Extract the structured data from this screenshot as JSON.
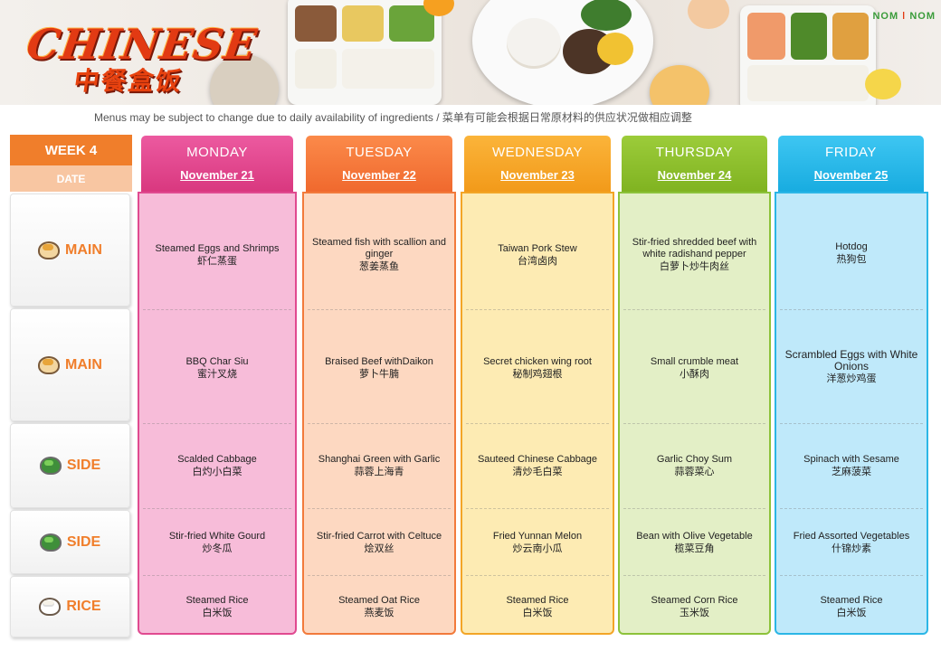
{
  "header": {
    "brand_main": "CHINESE",
    "brand_sub": "中餐盒饭",
    "logo_left": "NOM",
    "logo_right": "NOM",
    "notice": "Menus may be subject to change due to daily availability  of ingredients / 菜单有可能会根据日常原材料的供应状况做相应调整"
  },
  "sidebar": {
    "week": "WEEK 4",
    "date_label": "DATE",
    "rows": [
      {
        "label": "MAIN",
        "icon": "main-dish-icon"
      },
      {
        "label": "MAIN",
        "icon": "main-dish-icon"
      },
      {
        "label": "SIDE",
        "icon": "vegetable-bowl-icon"
      },
      {
        "label": "SIDE",
        "icon": "vegetable-bowl-icon"
      },
      {
        "label": "RICE",
        "icon": "rice-bowl-icon"
      }
    ]
  },
  "days": [
    {
      "name": "MONDAY",
      "date": "November 21",
      "color": "#e04a90",
      "dishes": [
        {
          "en": "Steamed Eggs and Shrimps",
          "zh": "虾仁蒸蛋"
        },
        {
          "en": "BBQ Char Siu",
          "zh": "蜜汁叉烧"
        },
        {
          "en": "Scalded Cabbage",
          "zh": "白灼小白菜"
        },
        {
          "en": "Stir-fried White Gourd",
          "zh": "炒冬瓜"
        },
        {
          "en": "Steamed Rice",
          "zh": "白米饭"
        }
      ]
    },
    {
      "name": "TUESDAY",
      "date": "November 22",
      "color": "#f27a3b",
      "dishes": [
        {
          "en": "Steamed fish with scallion and ginger",
          "zh": "葱姜蒸鱼"
        },
        {
          "en": "Braised Beef withDaikon",
          "zh": "萝卜牛腩"
        },
        {
          "en": "Shanghai Green with Garlic",
          "zh": "蒜蓉上海青"
        },
        {
          "en": "Stir-fried Carrot with Celtuce",
          "zh": "烩双丝"
        },
        {
          "en": "Steamed Oat Rice",
          "zh": "燕麦饭"
        }
      ]
    },
    {
      "name": "WEDNESDAY",
      "date": "November 23",
      "color": "#f3a526",
      "dishes": [
        {
          "en": "Taiwan Pork Stew",
          "zh": "台湾卤肉"
        },
        {
          "en": "Secret chicken wing root",
          "zh": "秘制鸡翅根"
        },
        {
          "en": "Sauteed Chinese Cabbage",
          "zh": "清炒毛白菜"
        },
        {
          "en": "Fried Yunnan Melon",
          "zh": "炒云南小瓜"
        },
        {
          "en": "Steamed Rice",
          "zh": "白米饭"
        }
      ]
    },
    {
      "name": "THURSDAY",
      "date": "November 24",
      "color": "#8cc23a",
      "dishes": [
        {
          "en": "Stir-fried shredded beef with white radishand pepper",
          "zh": "白萝卜炒牛肉丝"
        },
        {
          "en": "Small crumble meat",
          "zh": "小酥肉"
        },
        {
          "en": "Garlic Choy Sum",
          "zh": "蒜蓉菜心"
        },
        {
          "en": "Bean with Olive Vegetable",
          "zh": "榄菜豆角"
        },
        {
          "en": "Steamed Corn Rice",
          "zh": "玉米饭"
        }
      ]
    },
    {
      "name": "FRIDAY",
      "date": "November 25",
      "color": "#2bb6e6",
      "dishes": [
        {
          "en": "Hotdog",
          "zh": "热狗包"
        },
        {
          "en": "Scrambled Eggs with White Onions",
          "zh": "洋葱炒鸡蛋"
        },
        {
          "en": "Spinach with Sesame",
          "zh": "芝麻菠菜"
        },
        {
          "en": "Fried  Assorted  Vegetables",
          "zh": "什锦炒素"
        },
        {
          "en": "Steamed Rice",
          "zh": "白米饭"
        }
      ]
    }
  ]
}
